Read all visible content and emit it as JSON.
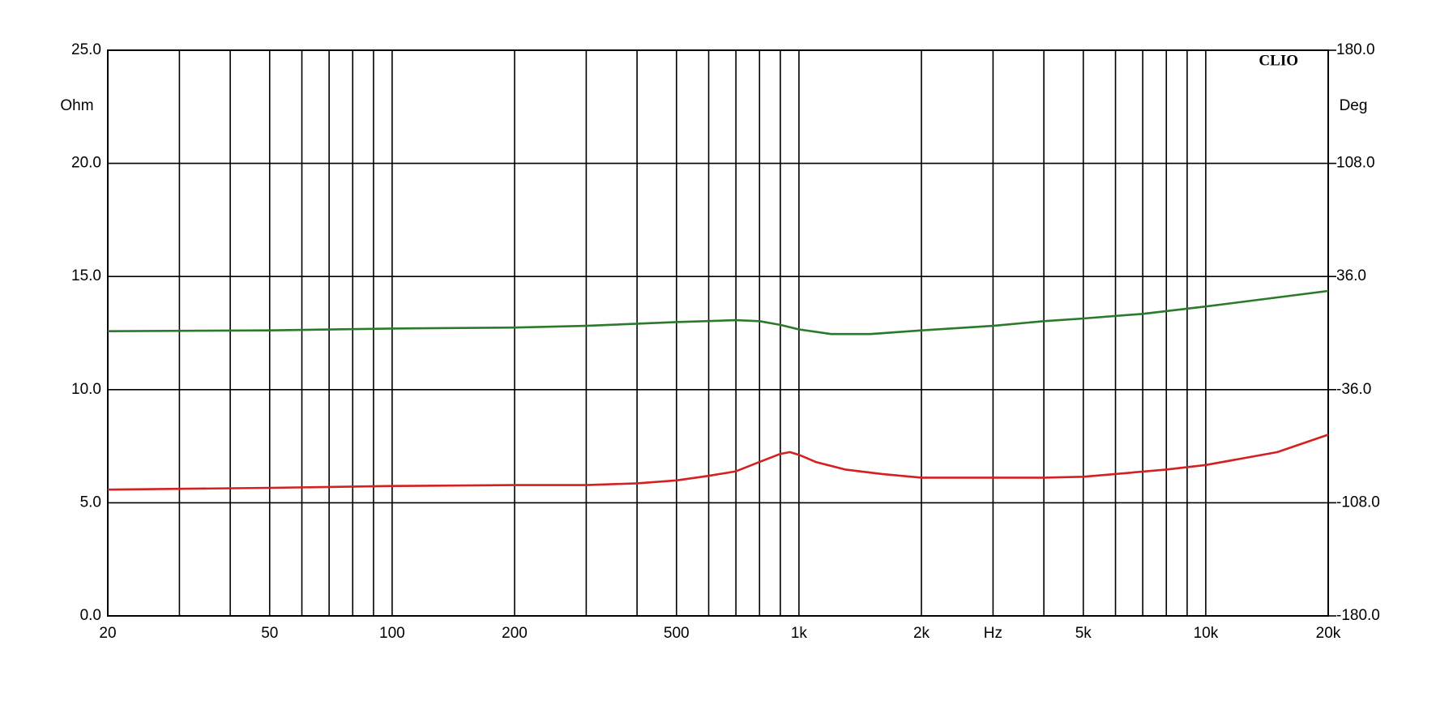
{
  "chart_data": {
    "type": "line",
    "title": "CLIO",
    "y_label": "Ohm",
    "y2_label": "Deg",
    "log_x": true,
    "grid": true,
    "xlim": [
      20,
      20000
    ],
    "xticks": [
      20,
      50,
      100,
      200,
      500,
      {
        "value": 1000,
        "label": "1k"
      },
      {
        "value": 2000,
        "label": "2k"
      },
      {
        "value": 3000,
        "label": "Hz"
      },
      {
        "value": 5000,
        "label": "5k"
      },
      {
        "value": 10000,
        "label": "10k"
      },
      {
        "value": 20000,
        "label": "20k"
      }
    ],
    "xminor_ticks": [
      30,
      40,
      60,
      70,
      80,
      90,
      300,
      400,
      600,
      700,
      800,
      900,
      4000,
      6000,
      7000,
      8000,
      9000
    ],
    "ylim": [
      0,
      25
    ],
    "yticks": [
      {
        "value": 0,
        "label": "0.0"
      },
      {
        "value": 5,
        "label": "5.0"
      },
      {
        "value": 10,
        "label": "10.0"
      },
      {
        "value": 15,
        "label": "15.0"
      },
      {
        "value": 20,
        "label": "20.0"
      },
      {
        "value": 25,
        "label": "25.0"
      }
    ],
    "y2lim": [
      -180,
      180
    ],
    "y2ticks": [
      {
        "value": -180,
        "label": "-180.0"
      },
      {
        "value": -108,
        "label": "-108.0"
      },
      {
        "value": -36,
        "label": "-36.0"
      },
      {
        "value": 36,
        "label": "36.0"
      },
      {
        "value": 108,
        "label": "108.0"
      },
      {
        "value": 180,
        "label": "180.0"
      }
    ],
    "series": [
      {
        "color": "#d42020",
        "x": [
          20,
          50,
          100,
          200,
          300,
          400,
          500,
          600,
          700,
          800,
          900,
          950,
          1000,
          1100,
          1300,
          1600,
          2000,
          2500,
          3000,
          4000,
          5000,
          6000,
          8000,
          10000,
          15000,
          20000
        ],
        "values": [
          5.58,
          5.66,
          5.74,
          5.78,
          5.78,
          5.86,
          5.99,
          6.19,
          6.39,
          6.8,
          7.16,
          7.24,
          7.12,
          6.8,
          6.47,
          6.27,
          6.11,
          6.11,
          6.11,
          6.11,
          6.15,
          6.27,
          6.47,
          6.67,
          7.24,
          8.01
        ]
      },
      {
        "color": "#2a7a2a",
        "axis": "y2",
        "x": [
          20,
          50,
          100,
          200,
          300,
          500,
          700,
          800,
          900,
          1000,
          1200,
          1500,
          2000,
          3000,
          4000,
          5000,
          7000,
          10000,
          15000,
          20000
        ],
        "values": [
          1.2,
          1.7,
          2.9,
          3.5,
          4.6,
          7.0,
          8.2,
          7.6,
          5.2,
          2.3,
          -0.6,
          -0.6,
          1.7,
          4.6,
          7.6,
          9.3,
          12.2,
          16.9,
          22.7,
          26.8
        ]
      }
    ]
  }
}
